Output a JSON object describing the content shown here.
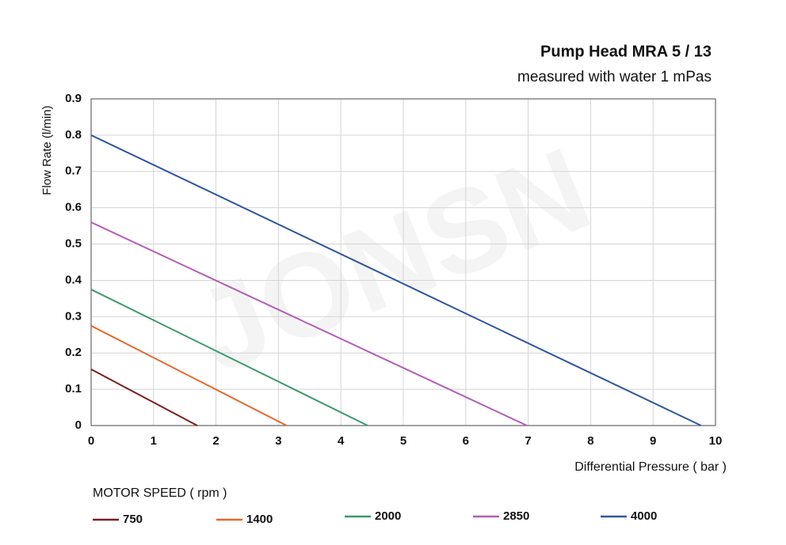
{
  "chart_data": {
    "type": "line",
    "title": "Pump Head MRA 5 / 13",
    "subtitle": "measured with water 1 mPas",
    "watermark": "JONSN",
    "x_label": "Differential Pressure ( bar )",
    "y_label": "Flow Rate (l/min)",
    "legend_title": "MOTOR SPEED ( rpm )",
    "xlim": [
      0,
      10
    ],
    "xticks": [
      0,
      1,
      2,
      3,
      4,
      5,
      6,
      7,
      8,
      9,
      10
    ],
    "ylim": [
      0,
      0.9
    ],
    "yticks": [
      0,
      0.1,
      0.2,
      0.3,
      0.4,
      0.5,
      0.6,
      0.7,
      0.8,
      0.9
    ],
    "grid": true,
    "series": [
      {
        "name": "750",
        "color": "#7a1f24",
        "x": [
          0,
          1.7
        ],
        "values": [
          0.155,
          0
        ]
      },
      {
        "name": "1400",
        "color": "#e8662c",
        "x": [
          0,
          3.13
        ],
        "values": [
          0.275,
          0
        ]
      },
      {
        "name": "2000",
        "color": "#3a9a6c",
        "x": [
          0,
          4.43
        ],
        "values": [
          0.375,
          0
        ]
      },
      {
        "name": "2850",
        "color": "#b35db6",
        "x": [
          0,
          6.98
        ],
        "values": [
          0.56,
          0
        ]
      },
      {
        "name": "4000",
        "color": "#2f56a0",
        "x": [
          0,
          9.77
        ],
        "values": [
          0.8,
          0
        ]
      }
    ]
  }
}
